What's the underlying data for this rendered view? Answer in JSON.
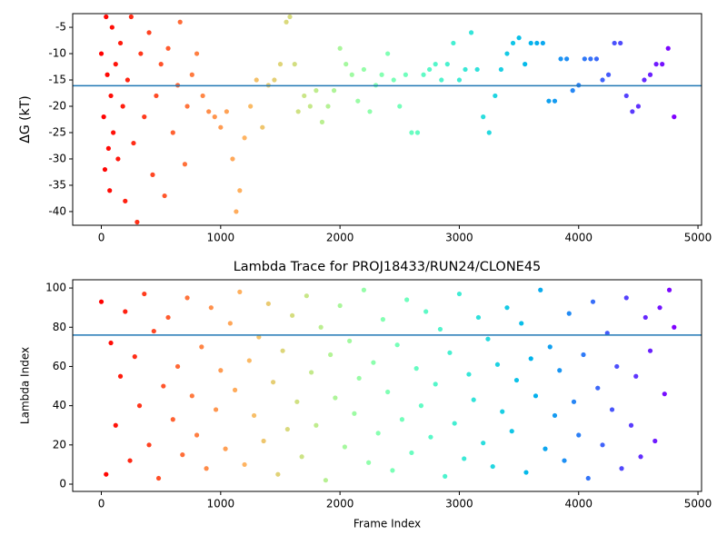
{
  "chart_data": [
    {
      "type": "scatter",
      "ylabel": "ΔG (kT)",
      "colormap": "rainbow_r",
      "x": [
        0,
        20,
        30,
        40,
        50,
        60,
        70,
        80,
        90,
        100,
        120,
        140,
        160,
        180,
        200,
        220,
        250,
        270,
        300,
        330,
        360,
        400,
        430,
        460,
        500,
        530,
        560,
        600,
        640,
        660,
        700,
        720,
        760,
        800,
        850,
        900,
        950,
        1000,
        1050,
        1100,
        1130,
        1160,
        1200,
        1250,
        1300,
        1350,
        1400,
        1450,
        1500,
        1550,
        1580,
        1620,
        1650,
        1700,
        1750,
        1800,
        1850,
        1900,
        1950,
        2000,
        2050,
        2100,
        2150,
        2200,
        2250,
        2300,
        2350,
        2400,
        2450,
        2500,
        2550,
        2600,
        2650,
        2700,
        2750,
        2800,
        2850,
        2900,
        2950,
        3000,
        3050,
        3100,
        3150,
        3200,
        3250,
        3300,
        3350,
        3400,
        3450,
        3500,
        3550,
        3600,
        3650,
        3700,
        3750,
        3800,
        3850,
        3900,
        3950,
        4000,
        4050,
        4100,
        4150,
        4200,
        4250,
        4300,
        4350,
        4400,
        4450,
        4500,
        4550,
        4600,
        4650,
        4700,
        4750,
        4800
      ],
      "values": [
        -10,
        -22,
        -32,
        -3,
        -14,
        -28,
        -36,
        -18,
        -5,
        -25,
        -12,
        -30,
        -8,
        -20,
        -38,
        -15,
        -3,
        -27,
        -42,
        -10,
        -22,
        -6,
        -33,
        -18,
        -12,
        -37,
        -9,
        -25,
        -16,
        -4,
        -31,
        -20,
        -14,
        -10,
        -18,
        -21,
        -22,
        -24,
        -21,
        -30,
        -40,
        -36,
        -26,
        -20,
        -15,
        -24,
        -16,
        -15,
        -12,
        -4,
        -3,
        -12,
        -21,
        -18,
        -20,
        -17,
        -23,
        -20,
        -17,
        -9,
        -12,
        -14,
        -19,
        -13,
        -21,
        -16,
        -14,
        -10,
        -15,
        -20,
        -14,
        -25,
        -25,
        -14,
        -13,
        -12,
        -15,
        -12,
        -8,
        -15,
        -13,
        -6,
        -13,
        -22,
        -25,
        -18,
        -13,
        -10,
        -8,
        -7,
        -12,
        -8,
        -8,
        -8,
        -19,
        -19,
        -11,
        -11,
        -17,
        -16,
        -11,
        -11,
        -11,
        -15,
        -14,
        -8,
        -8,
        -18,
        -21,
        -20,
        -15,
        -14,
        -12,
        -12,
        -9,
        -22
      ],
      "hline": -16.1,
      "hline_color": "#1f77b4",
      "xlim": [
        -240,
        5030
      ],
      "xticks": [
        0,
        1000,
        2000,
        3000,
        4000,
        5000
      ],
      "ylim": [
        -42.6,
        -2.4
      ],
      "yticks": [
        -40,
        -35,
        -30,
        -25,
        -20,
        -15,
        -10,
        -5
      ]
    },
    {
      "type": "scatter",
      "title": "Lambda Trace for PROJ18433/RUN24/CLONE45",
      "xlabel": "Frame Index",
      "ylabel": "Lambda Index",
      "colormap": "rainbow_r",
      "x": [
        0,
        40,
        80,
        120,
        160,
        200,
        240,
        280,
        320,
        360,
        400,
        440,
        480,
        520,
        560,
        600,
        640,
        680,
        720,
        760,
        800,
        840,
        880,
        920,
        960,
        1000,
        1040,
        1080,
        1120,
        1160,
        1200,
        1240,
        1280,
        1320,
        1360,
        1400,
        1440,
        1480,
        1520,
        1560,
        1600,
        1640,
        1680,
        1720,
        1760,
        1800,
        1840,
        1880,
        1920,
        1960,
        2000,
        2040,
        2080,
        2120,
        2160,
        2200,
        2240,
        2280,
        2320,
        2360,
        2400,
        2440,
        2480,
        2520,
        2560,
        2600,
        2640,
        2680,
        2720,
        2760,
        2800,
        2840,
        2880,
        2920,
        2960,
        3000,
        3040,
        3080,
        3120,
        3160,
        3200,
        3240,
        3280,
        3320,
        3360,
        3400,
        3440,
        3480,
        3520,
        3560,
        3600,
        3640,
        3680,
        3720,
        3760,
        3800,
        3840,
        3880,
        3920,
        3960,
        4000,
        4040,
        4080,
        4120,
        4160,
        4200,
        4240,
        4280,
        4320,
        4360,
        4400,
        4440,
        4480,
        4520,
        4560,
        4600,
        4640,
        4680,
        4720,
        4760,
        4800
      ],
      "values": [
        93,
        5,
        72,
        30,
        55,
        88,
        12,
        65,
        40,
        97,
        20,
        78,
        3,
        50,
        85,
        33,
        60,
        15,
        95,
        45,
        25,
        70,
        8,
        90,
        38,
        58,
        18,
        82,
        48,
        98,
        10,
        63,
        35,
        75,
        22,
        92,
        52,
        5,
        68,
        28,
        86,
        42,
        14,
        96,
        57,
        30,
        80,
        2,
        66,
        44,
        91,
        19,
        73,
        36,
        54,
        99,
        11,
        62,
        26,
        84,
        47,
        7,
        71,
        33,
        94,
        16,
        59,
        40,
        88,
        24,
        51,
        79,
        4,
        67,
        31,
        97,
        13,
        56,
        43,
        85,
        21,
        74,
        9,
        61,
        37,
        90,
        27,
        53,
        82,
        6,
        64,
        45,
        99,
        18,
        70,
        35,
        58,
        12,
        87,
        42,
        25,
        66,
        3,
        93,
        49,
        20,
        77,
        38,
        60,
        8,
        95,
        30,
        55,
        14,
        85,
        68,
        22,
        90,
        46,
        99,
        80
      ],
      "hline": 76,
      "hline_color": "#1f77b4",
      "xlim": [
        -240,
        5030
      ],
      "xticks": [
        0,
        1000,
        2000,
        3000,
        4000,
        5000
      ],
      "ylim": [
        -3.7,
        104.2
      ],
      "yticks": [
        0,
        20,
        40,
        60,
        80,
        100
      ]
    }
  ]
}
